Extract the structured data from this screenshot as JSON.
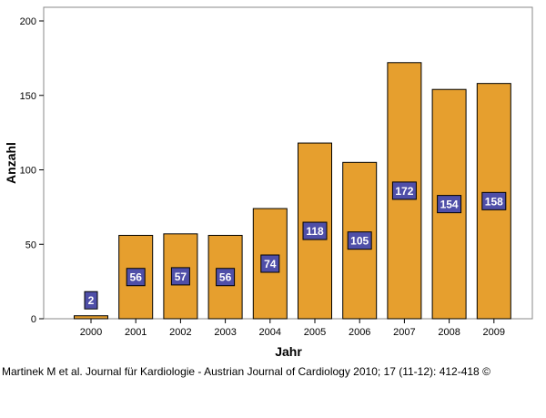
{
  "chart_data": {
    "type": "bar",
    "categories": [
      "2000",
      "2001",
      "2002",
      "2003",
      "2004",
      "2005",
      "2006",
      "2007",
      "2008",
      "2009"
    ],
    "values": [
      2,
      56,
      57,
      56,
      74,
      118,
      105,
      172,
      154,
      158
    ],
    "title": "",
    "xlabel": "Jahr",
    "ylabel": "Anzahl",
    "ylim": [
      0,
      200
    ],
    "yticks": [
      0,
      50,
      100,
      150,
      200
    ],
    "grid": false,
    "legend": "none",
    "colors": {
      "bar_fill": "#E69F2E",
      "bar_stroke": "#000000",
      "label_fill": "#4F4FA8",
      "label_stroke": "#000000",
      "label_text": "#FFFFFF",
      "frame": "#888888"
    }
  },
  "citation": "Martinek M et al. Journal für Kardiologie - Austrian Journal of Cardiology 2010; 17 (11-12): 412-418 ©"
}
